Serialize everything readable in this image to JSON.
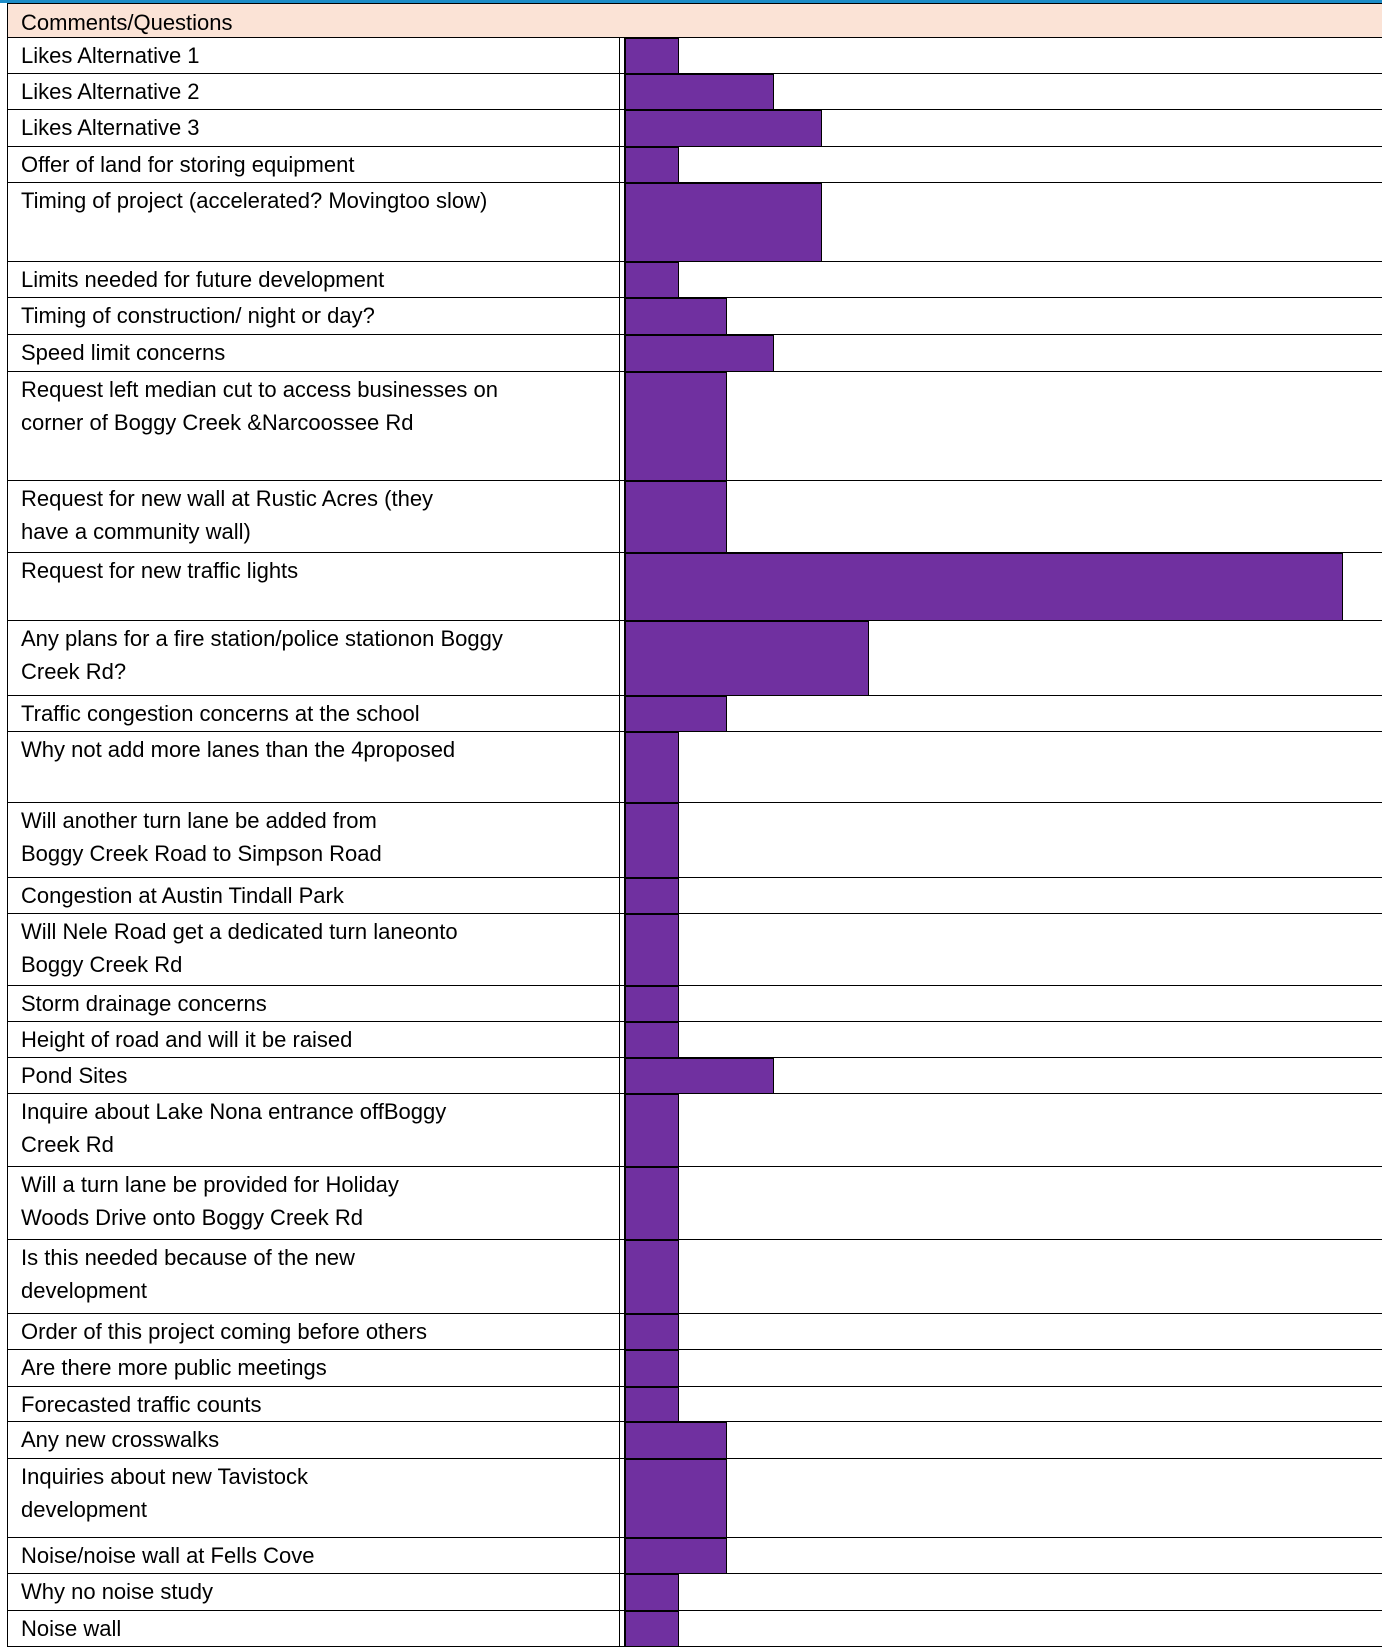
{
  "chart_data": {
    "type": "bar",
    "orientation": "horizontal",
    "title": "Comments/Questions",
    "grid": false,
    "bar_color": "#7030a0",
    "header_color": "#fbe3d6",
    "categories": [
      "Likes Alternative 1",
      "Likes Alternative 2",
      "Likes Alternative 3",
      "Offer of land for storing equipment",
      "Timing of project (accelerated? Movingtoo slow)",
      "Limits needed for future development",
      "Timing of construction/ night or day?",
      "Speed limit concerns",
      "Request left median cut to access businesses on\ncorner of Boggy Creek &Narcoossee Rd",
      "Request for new wall at Rustic Acres (they\nhave a community wall)",
      "Request for new traffic lights",
      "Any plans for a fire station/police stationon Boggy\nCreek Rd?",
      "Traffic congestion concerns at the school",
      "Why not add more lanes than the 4proposed",
      "Will another turn lane be added from\nBoggy Creek Road to Simpson Road",
      "Congestion at Austin Tindall Park",
      "Will Nele Road get a dedicated turn laneonto\nBoggy Creek Rd",
      "Storm drainage concerns",
      "Height of road and will it be raised",
      "Pond Sites",
      "Inquire about Lake Nona entrance offBoggy\nCreek Rd",
      "Will a turn lane be provided for Holiday\nWoods Drive onto Boggy Creek Rd",
      "Is this needed because of the new\ndevelopment",
      "Order of this project coming before others",
      "Are there more public meetings",
      "Forecasted traffic counts",
      "Any new crosswalks",
      "Inquiries about new Tavistock\ndevelopment",
      "Noise/noise wall at Fells Cove",
      "Why no noise study",
      "Noise wall"
    ],
    "values": [
      1,
      3,
      4,
      1,
      4,
      1,
      2,
      3,
      2,
      2,
      15,
      5,
      2,
      1,
      1,
      1,
      1,
      1,
      1,
      3,
      1,
      1,
      1,
      1,
      1,
      1,
      2,
      2,
      2,
      1,
      1
    ]
  }
}
